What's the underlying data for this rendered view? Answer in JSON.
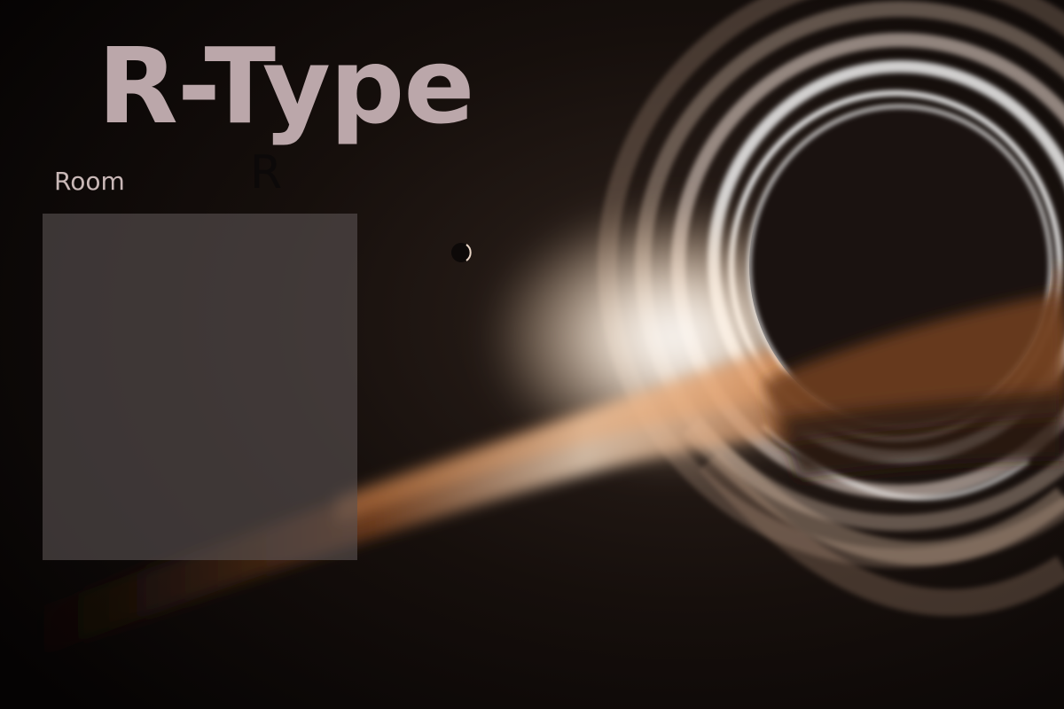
{
  "title": "R-Type",
  "room": {
    "label": "Room",
    "key": "R"
  },
  "scene": {
    "description_icon": "black-hole-icon",
    "colors": {
      "space": "#0a0706",
      "disk_glow": "#fff3e6",
      "disk_orange": "#c4682a",
      "title_text": "#bba7aa",
      "panel": "#5a5252"
    }
  }
}
